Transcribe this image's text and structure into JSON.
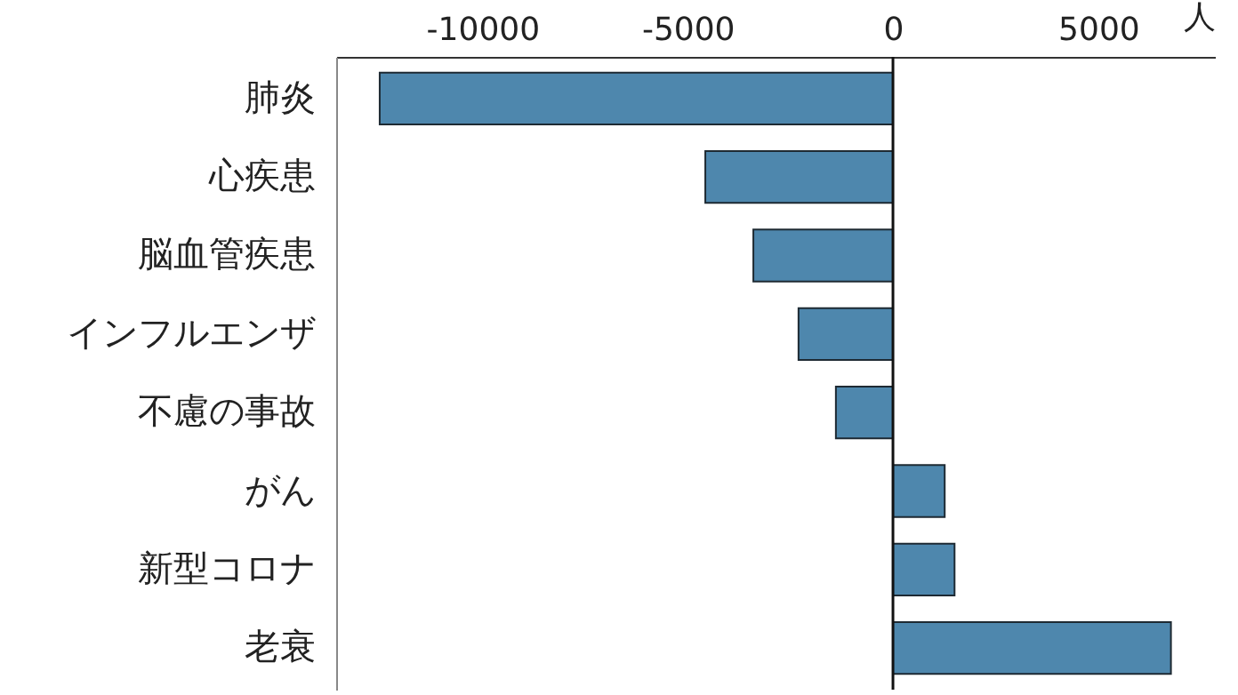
{
  "chart_data": {
    "type": "bar",
    "orientation": "horizontal",
    "xlabel": "人",
    "categories": [
      "肺炎",
      "心疾患",
      "脳血管疾患",
      "インフルエンザ",
      "不慮の事故",
      "がん",
      "新型コロナ",
      "老衰"
    ],
    "values": [
      -12500,
      -4570,
      -3400,
      -2300,
      -1390,
      1260,
      1500,
      6770
    ],
    "color": "#4e87ad",
    "xlim": [
      -13560,
      7840
    ],
    "xticks": [
      -10000,
      -5000,
      0,
      5000
    ],
    "ref_lines": [
      {
        "axis": "x",
        "value": 0
      }
    ],
    "grid": false
  }
}
